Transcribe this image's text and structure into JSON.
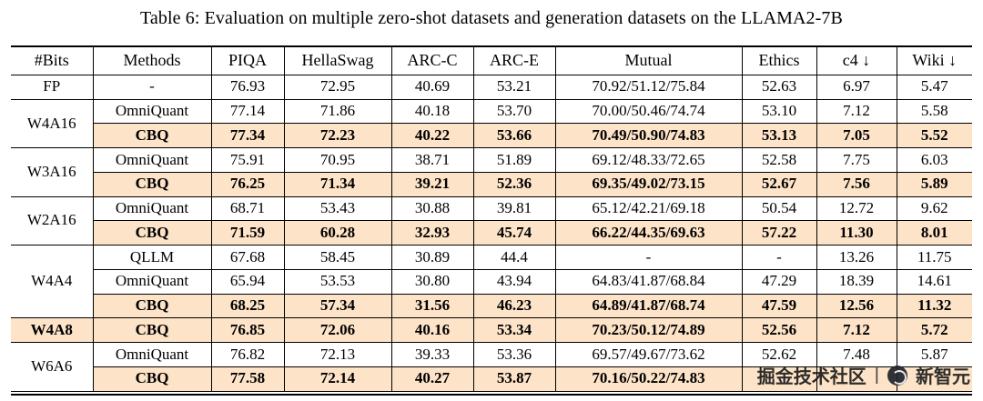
{
  "caption": "Table 6: Evaluation on multiple zero-shot datasets and generation datasets on the LLAMA2-7B",
  "watermark": {
    "left": "掘金技术社区",
    "separator": "|",
    "right": "新智元",
    "logo": "xinzhiyuan-logo"
  },
  "table": {
    "headers": [
      "#Bits",
      "Methods",
      "PIQA",
      "HellaSwag",
      "ARC-C",
      "ARC-E",
      "Mutual",
      "Ethics",
      "c4 ↓",
      "Wiki ↓"
    ],
    "highlight_color": "#fde3c7",
    "groups": [
      {
        "bits": "FP",
        "rows": [
          {
            "method": "-",
            "highlight": false,
            "values": [
              "76.93",
              "72.95",
              "40.69",
              "53.21",
              "70.92/51.12/75.84",
              "52.63",
              "6.97",
              "5.47"
            ]
          }
        ]
      },
      {
        "bits": "W4A16",
        "rows": [
          {
            "method": "OmniQuant",
            "highlight": false,
            "values": [
              "77.14",
              "71.86",
              "40.18",
              "53.70",
              "70.00/50.46/74.74",
              "53.10",
              "7.12",
              "5.58"
            ]
          },
          {
            "method": "CBQ",
            "highlight": true,
            "values": [
              "77.34",
              "72.23",
              "40.22",
              "53.66",
              "70.49/50.90/74.83",
              "53.13",
              "7.05",
              "5.52"
            ]
          }
        ]
      },
      {
        "bits": "W3A16",
        "rows": [
          {
            "method": "OmniQuant",
            "highlight": false,
            "values": [
              "75.91",
              "70.95",
              "38.71",
              "51.89",
              "69.12/48.33/72.65",
              "52.58",
              "7.75",
              "6.03"
            ]
          },
          {
            "method": "CBQ",
            "highlight": true,
            "values": [
              "76.25",
              "71.34",
              "39.21",
              "52.36",
              "69.35/49.02/73.15",
              "52.67",
              "7.56",
              "5.89"
            ]
          }
        ]
      },
      {
        "bits": "W2A16",
        "rows": [
          {
            "method": "OmniQuant",
            "highlight": false,
            "values": [
              "68.71",
              "53.43",
              "30.88",
              "39.81",
              "65.12/42.21/69.18",
              "50.54",
              "12.72",
              "9.62"
            ]
          },
          {
            "method": "CBQ",
            "highlight": true,
            "values": [
              "71.59",
              "60.28",
              "32.93",
              "45.74",
              "66.22/44.35/69.63",
              "57.22",
              "11.30",
              "8.01"
            ]
          }
        ]
      },
      {
        "bits": "W4A4",
        "rows": [
          {
            "method": "QLLM",
            "highlight": false,
            "values": [
              "67.68",
              "58.45",
              "30.89",
              "44.4",
              "-",
              "-",
              "13.26",
              "11.75"
            ]
          },
          {
            "method": "OmniQuant",
            "highlight": false,
            "values": [
              "65.94",
              "53.53",
              "30.80",
              "43.94",
              "64.83/41.87/68.84",
              "47.29",
              "18.39",
              "14.61"
            ]
          },
          {
            "method": "CBQ",
            "highlight": true,
            "values": [
              "68.25",
              "57.34",
              "31.56",
              "46.23",
              "64.89/41.87/68.74",
              "47.59",
              "12.56",
              "11.32"
            ]
          }
        ]
      },
      {
        "bits": "W4A8",
        "rows": [
          {
            "method": "CBQ",
            "highlight": true,
            "values": [
              "76.85",
              "72.06",
              "40.16",
              "53.34",
              "70.23/50.12/74.89",
              "52.56",
              "7.12",
              "5.72"
            ]
          }
        ]
      },
      {
        "bits": "W6A6",
        "rows": [
          {
            "method": "OmniQuant",
            "highlight": false,
            "values": [
              "76.82",
              "72.13",
              "39.33",
              "53.36",
              "69.57/49.67/73.62",
              "52.62",
              "7.48",
              "5.87"
            ]
          },
          {
            "method": "CBQ",
            "highlight": true,
            "values": [
              "77.58",
              "72.14",
              "40.27",
              "53.87",
              "70.16/50.22/74.83",
              "",
              "",
              ""
            ]
          }
        ]
      }
    ]
  }
}
